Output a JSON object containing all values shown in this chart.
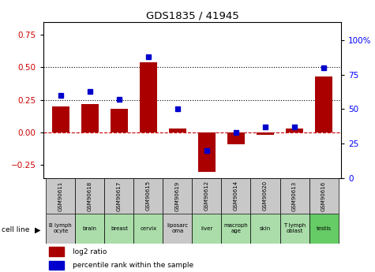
{
  "title": "GDS1835 / 41945",
  "samples": [
    "GSM90611",
    "GSM90618",
    "GSM90617",
    "GSM90615",
    "GSM90619",
    "GSM90612",
    "GSM90614",
    "GSM90620",
    "GSM90613",
    "GSM90616"
  ],
  "cell_lines": [
    "B lymph\nocyte",
    "brain",
    "breast",
    "cervix",
    "liposarc\noma",
    "liver",
    "macroph\nage",
    "skin",
    "T lymph\noblast",
    "testis"
  ],
  "cell_bg": [
    "#c8c8c8",
    "#aaddaa",
    "#aaddaa",
    "#aaddaa",
    "#c8c8c8",
    "#aaddaa",
    "#aaddaa",
    "#aaddaa",
    "#aaddaa",
    "#66cc66"
  ],
  "sample_bg": "#c8c8c8",
  "log2_ratio": [
    0.2,
    0.22,
    0.18,
    0.54,
    0.03,
    -0.3,
    -0.09,
    -0.02,
    0.03,
    0.43
  ],
  "percentile_rank": [
    60,
    63,
    57,
    88,
    50,
    20,
    33,
    37,
    37,
    80
  ],
  "left_ylim": [
    -0.35,
    0.85
  ],
  "right_ylim": [
    0,
    113.33
  ],
  "left_yticks": [
    -0.25,
    0,
    0.25,
    0.5,
    0.75
  ],
  "right_ytick_vals": [
    0,
    25,
    50,
    75,
    100
  ],
  "right_ytick_labels": [
    "0",
    "25",
    "50",
    "75",
    "100%"
  ],
  "hline_values": [
    0.25,
    0.5
  ],
  "bar_color": "#aa0000",
  "dot_color": "#0000cc",
  "bar_width": 0.6,
  "legend_red_label": "log2 ratio",
  "legend_blue_label": "percentile rank within the sample",
  "cell_line_label": "cell line"
}
